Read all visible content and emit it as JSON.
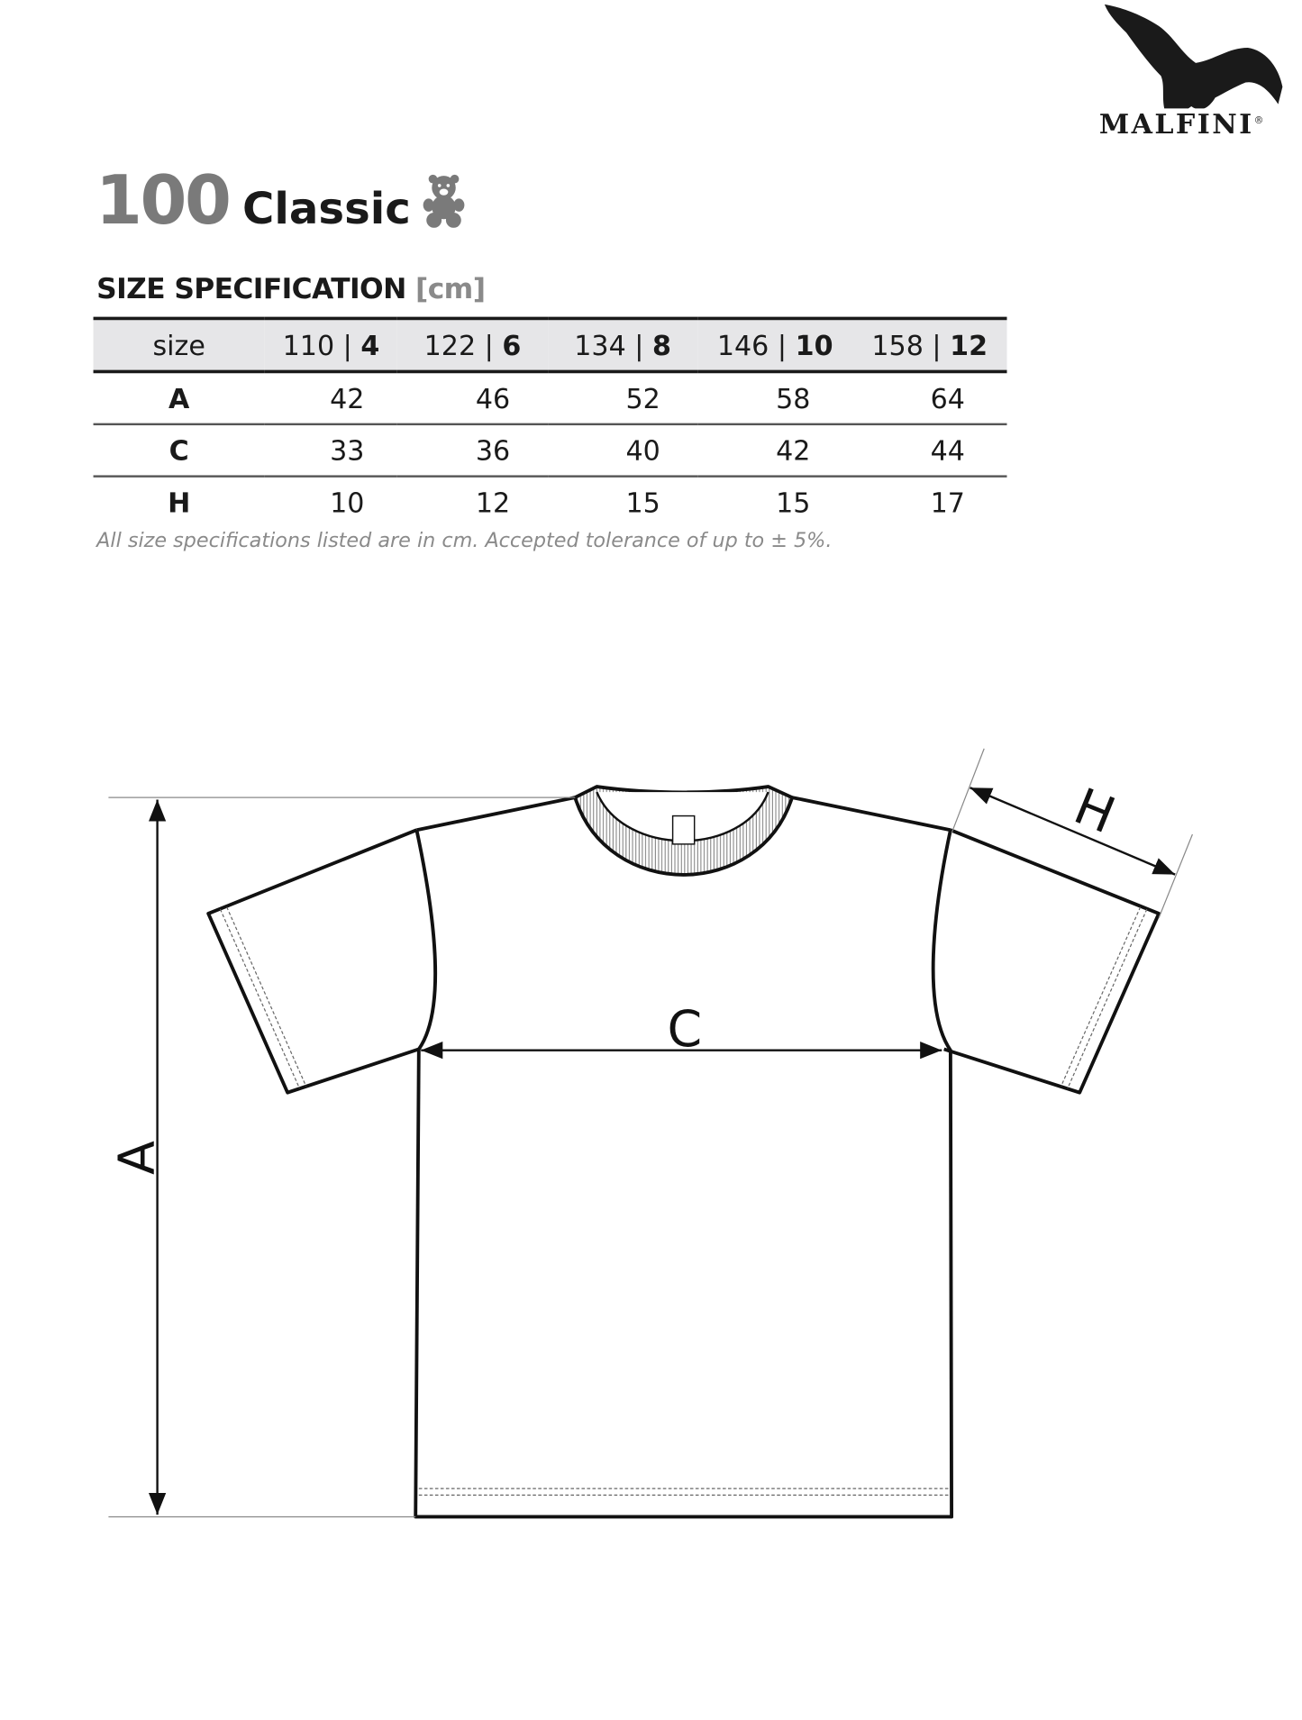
{
  "brand": {
    "name": "MALFINI",
    "mark": "®"
  },
  "product": {
    "number": "100",
    "name": "Classic",
    "icon": "teddy-bear-icon"
  },
  "spec": {
    "heading": "SIZE SPECIFICATION",
    "unit": "[cm]",
    "columns": [
      {
        "label": "size"
      },
      {
        "cm": "110 |",
        "age": "4"
      },
      {
        "cm": "122 |",
        "age": "6"
      },
      {
        "cm": "134 |",
        "age": "8"
      },
      {
        "cm": "146 |",
        "age": "10"
      },
      {
        "cm": "158 |",
        "age": "12"
      }
    ],
    "rows": [
      {
        "label": "A",
        "values": [
          "42",
          "46",
          "52",
          "58",
          "64"
        ]
      },
      {
        "label": "C",
        "values": [
          "33",
          "36",
          "40",
          "42",
          "44"
        ]
      },
      {
        "label": "H",
        "values": [
          "10",
          "12",
          "15",
          "15",
          "17"
        ]
      }
    ],
    "footnote": "All size specifications listed are in cm. Accepted tolerance of up to ± 5%."
  },
  "diagram": {
    "labels": {
      "a": "A",
      "c": "C",
      "h": "H"
    }
  },
  "colors": {
    "header_bg": "#e6e6e8",
    "title_number": "#7a7a7a",
    "unit": "#8a8a8a"
  }
}
